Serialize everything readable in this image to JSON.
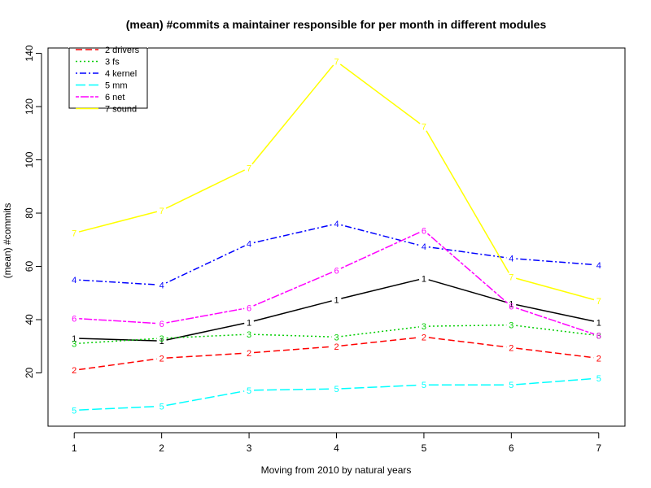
{
  "chart_data": {
    "type": "line",
    "title": "(mean) #commits a maintainer responsible for per month in different modules",
    "xlabel": "Moving from 2010 by natural years",
    "ylabel": "(mean) #commits",
    "x": [
      1,
      2,
      3,
      4,
      5,
      6,
      7
    ],
    "xlim": [
      0.7,
      7.3
    ],
    "ylim": [
      0,
      142
    ],
    "yticks": [
      20,
      40,
      60,
      80,
      100,
      120,
      140
    ],
    "grid": false,
    "legend_position": "top-left",
    "series": [
      {
        "marker": "1",
        "name": "",
        "color": "#000000",
        "dash": "solid",
        "values": [
          33,
          32,
          39,
          47.5,
          55.5,
          46,
          39
        ]
      },
      {
        "marker": "2",
        "name": "2 drivers",
        "color": "#ff0000",
        "dash": "dashed",
        "values": [
          21,
          25.5,
          27.5,
          30,
          33.5,
          29.5,
          25.5
        ]
      },
      {
        "marker": "3",
        "name": "3 fs",
        "color": "#00cd00",
        "dash": "dotted",
        "values": [
          31,
          33,
          34.5,
          33.5,
          37.5,
          38,
          34
        ]
      },
      {
        "marker": "4",
        "name": "4 kernel",
        "color": "#0000ff",
        "dash": "dotdash",
        "values": [
          55,
          53,
          68.5,
          76,
          67.5,
          63,
          60.5
        ]
      },
      {
        "marker": "5",
        "name": "5 mm",
        "color": "#00ffff",
        "dash": "longdash",
        "values": [
          6,
          7.5,
          13.5,
          14,
          15.5,
          15.5,
          18
        ]
      },
      {
        "marker": "6",
        "name": "6 net",
        "color": "#ff00ff",
        "dash": "twodash",
        "values": [
          40.5,
          38.5,
          44.5,
          58.5,
          73.5,
          45,
          34
        ]
      },
      {
        "marker": "7",
        "name": "7 sound",
        "color": "#ffff00",
        "dash": "solid2",
        "values": [
          72.5,
          81,
          97,
          137,
          112.5,
          56,
          47
        ]
      }
    ]
  }
}
